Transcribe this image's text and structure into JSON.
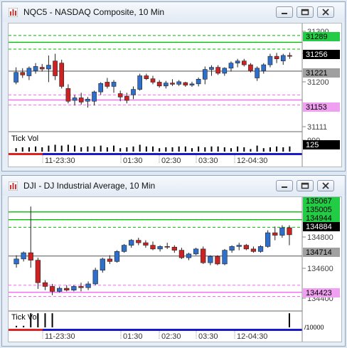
{
  "window1": {
    "title": "NQC5 - NASDAQ Composite, 10 Min",
    "pane_label": "Tick Vol",
    "axis_labels": [
      "31300",
      "31250",
      "31200",
      "31111",
      "999"
    ],
    "price_tags": [
      {
        "text": "31289",
        "bg": "#22cc44",
        "fg": "#000000"
      },
      {
        "text": "31256",
        "bg": "#000000",
        "fg": "#ffffff"
      },
      {
        "text": "31221",
        "bg": "#a0a0a0",
        "fg": "#000000"
      },
      {
        "text": "31153",
        "bg": "#f0a0f0",
        "fg": "#000000"
      },
      {
        "text": "125",
        "bg": "#000000",
        "fg": "#ffffff"
      }
    ],
    "time_labels": [
      "11-23:30",
      "01:30",
      "02:30",
      "03:30",
      "12-04:30"
    ]
  },
  "window2": {
    "title": "DJI - DJ Industrial Average, 10 Min",
    "pane_label": "Tick Vol",
    "axis_labels": [
      "134800",
      "134600",
      "134400"
    ],
    "price_tags": [
      {
        "text": "135067",
        "bg": "#22cc44",
        "fg": "#000000"
      },
      {
        "text": "135005",
        "bg": "#22cc44",
        "fg": "#000000"
      },
      {
        "text": "134944",
        "bg": "#22cc44",
        "fg": "#000000"
      },
      {
        "text": "134884",
        "bg": "#000000",
        "fg": "#ffffff"
      },
      {
        "text": "134714",
        "bg": "#a0a0a0",
        "fg": "#000000"
      },
      {
        "text": "134423",
        "bg": "#f0a0f0",
        "fg": "#000000"
      }
    ],
    "scale_note": "/10000",
    "time_labels": [
      "11-23:30",
      "01:30",
      "02:30",
      "03:30",
      "12-04:30"
    ]
  },
  "chart_data": [
    {
      "type": "candlestick",
      "title": "NQC5 - NASDAQ Composite, 10 Min",
      "ylim": [
        31090,
        31320
      ],
      "y_ticks": [
        31300,
        31250,
        31200
      ],
      "colors": {
        "up": "#2f6fcc",
        "down": "#cc2222",
        "support": "#ff66ff",
        "resistance": "#00bb00"
      },
      "levels": [
        {
          "value": 31305,
          "kind": "resistance",
          "style": "dashed"
        },
        {
          "value": 31289,
          "kind": "resistance",
          "style": "solid"
        },
        {
          "value": 31273,
          "kind": "resistance",
          "style": "dashed"
        },
        {
          "value": 31221,
          "kind": "close",
          "style": "solid"
        },
        {
          "value": 31165,
          "kind": "support",
          "style": "dashed"
        },
        {
          "value": 31153,
          "kind": "support",
          "style": "solid"
        },
        {
          "value": 31141,
          "kind": "support",
          "style": "dashed"
        }
      ],
      "candles": [
        [
          31195,
          31230,
          31190,
          31218
        ],
        [
          31218,
          31228,
          31205,
          31212
        ],
        [
          31210,
          31232,
          31200,
          31228
        ],
        [
          31222,
          31240,
          31215,
          31232
        ],
        [
          31230,
          31238,
          31220,
          31226
        ],
        [
          31226,
          31258,
          31195,
          31235
        ],
        [
          31245,
          31262,
          31200,
          31210
        ],
        [
          31240,
          31248,
          31180,
          31185
        ],
        [
          31180,
          31190,
          31145,
          31150
        ],
        [
          31152,
          31165,
          31140,
          31158
        ],
        [
          31158,
          31170,
          31142,
          31148
        ],
        [
          31150,
          31160,
          31135,
          31155
        ],
        [
          31150,
          31175,
          31140,
          31172
        ],
        [
          31172,
          31195,
          31165,
          31192
        ],
        [
          31195,
          31205,
          31180,
          31185
        ],
        [
          31185,
          31200,
          31170,
          31195
        ],
        [
          31168,
          31175,
          31150,
          31160
        ],
        [
          31162,
          31170,
          31145,
          31152
        ],
        [
          31165,
          31185,
          31155,
          31178
        ],
        [
          31178,
          31215,
          31175,
          31210
        ],
        [
          31210,
          31215,
          31200,
          31203
        ],
        [
          31203,
          31210,
          31190,
          31195
        ],
        [
          31195,
          31200,
          31182,
          31186
        ],
        [
          31186,
          31198,
          31180,
          31193
        ],
        [
          31193,
          31202,
          31186,
          31190
        ],
        [
          31190,
          31200,
          31186,
          31196
        ],
        [
          31194,
          31196,
          31184,
          31188
        ],
        [
          31188,
          31196,
          31184,
          31191
        ],
        [
          31191,
          31206,
          31185,
          31202
        ],
        [
          31202,
          31232,
          31190,
          31225
        ],
        [
          31225,
          31235,
          31210,
          31230
        ],
        [
          31230,
          31235,
          31212,
          31216
        ],
        [
          31216,
          31230,
          31210,
          31228
        ],
        [
          31228,
          31244,
          31220,
          31240
        ],
        [
          31240,
          31250,
          31230,
          31245
        ],
        [
          31245,
          31250,
          31232,
          31236
        ],
        [
          31236,
          31240,
          31218,
          31222
        ],
        [
          31205,
          31232,
          31198,
          31228
        ],
        [
          31222,
          31240,
          31215,
          31236
        ],
        [
          31236,
          31262,
          31230,
          31256
        ],
        [
          31256,
          31264,
          31240,
          31250
        ],
        [
          31245,
          31262,
          31236,
          31258
        ],
        [
          31258,
          31265,
          31250,
          31256
        ]
      ],
      "volume": [
        0.4,
        0.5,
        0.5,
        0.6,
        0.5,
        0.7,
        0.8,
        0.7,
        0.8,
        0.7,
        0.5,
        0.6,
        0.6,
        0.7,
        0.5,
        0.7,
        0.4,
        0.5,
        0.6,
        0.8,
        0.6,
        0.6,
        0.4,
        0.5,
        0.5,
        0.6,
        0.6,
        0.4,
        0.6,
        0.5,
        0.6,
        0.6,
        0.5,
        0.4,
        0.6,
        0.5,
        0.3,
        0.7,
        0.4,
        0.5,
        0.6,
        0.5,
        0.6
      ]
    },
    {
      "type": "candlestick",
      "title": "DJI - DJ Industrial Average, 10 Min",
      "ylim": [
        134330,
        135140
      ],
      "y_ticks": [
        134800,
        134600,
        134400
      ],
      "colors": {
        "up": "#2f6fcc",
        "down": "#cc2222",
        "support": "#ff66ff",
        "resistance": "#00bb00"
      },
      "levels": [
        {
          "value": 135067,
          "kind": "resistance",
          "style": "solid"
        },
        {
          "value": 135005,
          "kind": "resistance",
          "style": "solid"
        },
        {
          "value": 134944,
          "kind": "resistance",
          "style": "dashed"
        },
        {
          "value": 134714,
          "kind": "close",
          "style": "solid"
        },
        {
          "value": 134480,
          "kind": "support",
          "style": "dashed"
        },
        {
          "value": 134423,
          "kind": "support",
          "style": "solid"
        },
        {
          "value": 134390,
          "kind": "support",
          "style": "dashed"
        }
      ],
      "candles": [
        [
          134650,
          134720,
          134620,
          134690
        ],
        [
          134690,
          134750,
          134670,
          134740
        ],
        [
          134740,
          135110,
          134620,
          134680
        ],
        [
          134680,
          134700,
          134450,
          134500
        ],
        [
          134500,
          134520,
          134440,
          134470
        ],
        [
          134470,
          134490,
          134400,
          134430
        ],
        [
          134430,
          134470,
          134420,
          134455
        ],
        [
          134455,
          134480,
          134430,
          134440
        ],
        [
          134440,
          134480,
          134430,
          134470
        ],
        [
          134470,
          134500,
          134430,
          134460
        ],
        [
          134460,
          134510,
          134440,
          134490
        ],
        [
          134490,
          134620,
          134480,
          134600
        ],
        [
          134600,
          134700,
          134580,
          134690
        ],
        [
          134690,
          134720,
          134650,
          134670
        ],
        [
          134670,
          134760,
          134660,
          134750
        ],
        [
          134750,
          134810,
          134740,
          134800
        ],
        [
          134800,
          134850,
          134780,
          134840
        ],
        [
          134840,
          134860,
          134800,
          134820
        ],
        [
          134820,
          134840,
          134780,
          134800
        ],
        [
          134800,
          134830,
          134760,
          134770
        ],
        [
          134770,
          134800,
          134750,
          134790
        ],
        [
          134790,
          134820,
          134770,
          134785
        ],
        [
          134785,
          134800,
          134740,
          134760
        ],
        [
          134760,
          134780,
          134690,
          134700
        ],
        [
          134700,
          134740,
          134680,
          134730
        ],
        [
          134730,
          134780,
          134720,
          134770
        ],
        [
          134770,
          134790,
          134650,
          134660
        ],
        [
          134660,
          134720,
          134640,
          134710
        ],
        [
          134710,
          134720,
          134640,
          134650
        ],
        [
          134650,
          134770,
          134640,
          134760
        ],
        [
          134760,
          134800,
          134740,
          134790
        ],
        [
          134790,
          134820,
          134760,
          134800
        ],
        [
          134800,
          134810,
          134760,
          134770
        ],
        [
          134770,
          134790,
          134740,
          134750
        ],
        [
          134750,
          134800,
          134740,
          134790
        ],
        [
          134790,
          134920,
          134780,
          134900
        ],
        [
          134900,
          134950,
          134840,
          134880
        ],
        [
          134880,
          134960,
          134860,
          134940
        ],
        [
          134940,
          134960,
          134800,
          134884
        ]
      ],
      "volume": [
        0.1,
        0.1,
        0.9,
        0.9,
        0.9,
        0.9,
        0.0,
        0.0,
        0.0,
        0.0,
        0.0,
        0.0,
        0.0,
        0.0,
        0.0,
        0.0,
        0.0,
        0.0,
        0.0,
        0.0,
        0.0,
        0.0,
        0.0,
        0.0,
        0.0,
        0.0,
        0.0,
        0.0,
        0.0,
        0.0,
        0.0,
        0.0,
        0.0,
        0.0,
        0.0,
        0.0,
        0.0,
        0.0,
        0.9
      ]
    }
  ]
}
